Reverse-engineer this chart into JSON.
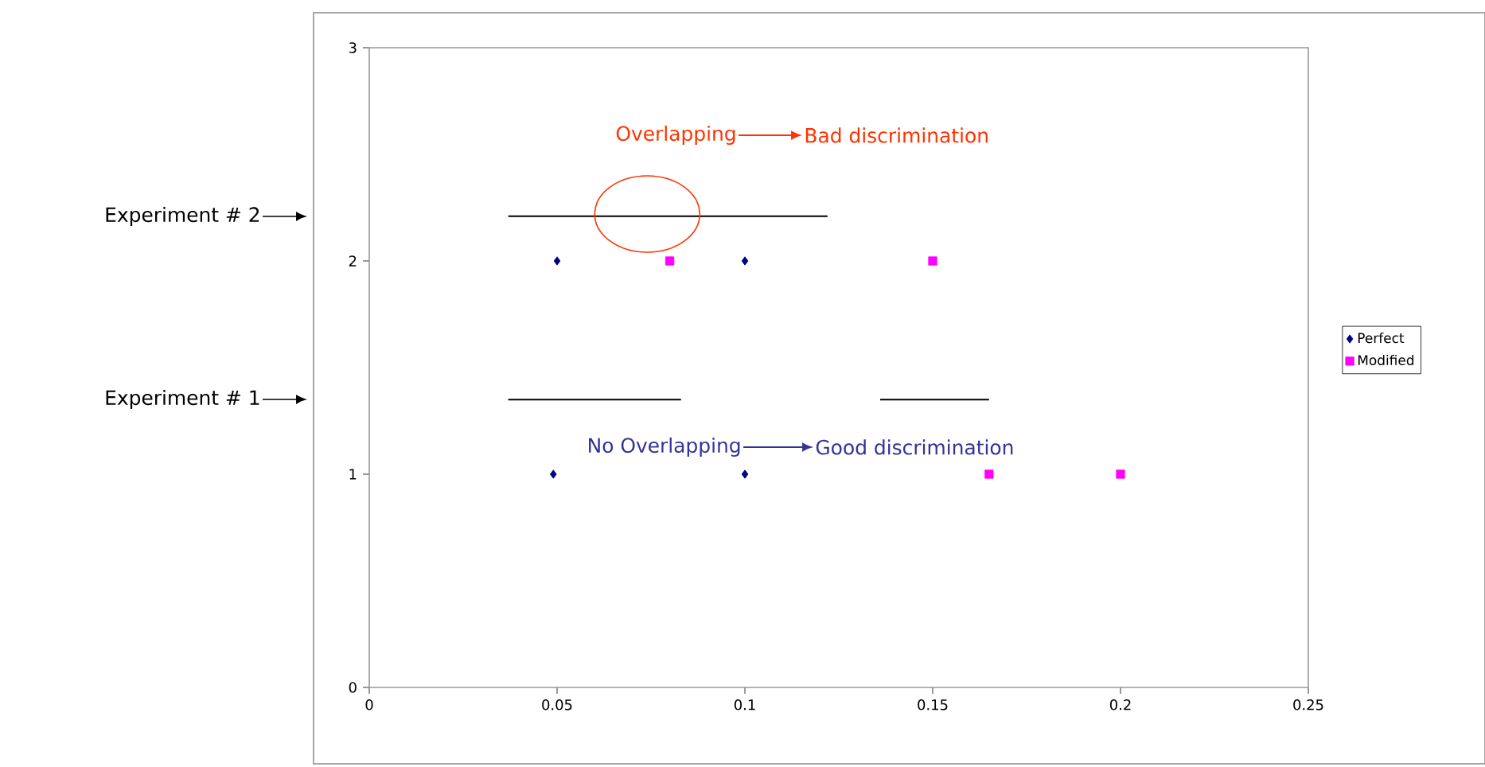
{
  "chart_data": {
    "type": "scatter",
    "xlim": [
      0,
      0.25
    ],
    "ylim": [
      0,
      3
    ],
    "xticks": [
      0,
      0.05,
      0.1,
      0.15,
      0.2,
      0.25
    ],
    "yticks": [
      0,
      1,
      2,
      3
    ],
    "grid": false,
    "legend": "right",
    "series": [
      {
        "name": "Perfect",
        "color": "#000080",
        "marker": "diamond",
        "x": [
          0.05,
          0.1,
          0.049,
          0.1
        ],
        "values": [
          2,
          2,
          1,
          1
        ]
      },
      {
        "name": "Modified",
        "color": "#ff00ff",
        "marker": "square",
        "x": [
          0.08,
          0.15,
          0.165,
          0.2
        ],
        "values": [
          2,
          2,
          1,
          1
        ]
      },
      {
        "type": "line",
        "color": "#000000",
        "marker": "none",
        "x": [
          0.037,
          0.122
        ],
        "values": [
          2.21,
          2.21
        ]
      },
      {
        "type": "line",
        "color": "#000000",
        "marker": "none",
        "x": [
          0.037,
          0.083
        ],
        "values": [
          1.35,
          1.35
        ]
      },
      {
        "type": "line",
        "color": "#000000",
        "marker": "none",
        "x": [
          0.136,
          0.165
        ],
        "values": [
          1.35,
          1.35
        ]
      }
    ],
    "annotations": [
      "Overlapping",
      "Bad discrimination",
      "No Overlapping",
      "Good discrimination",
      "Experiment # 2",
      "Experiment # 1"
    ]
  }
}
